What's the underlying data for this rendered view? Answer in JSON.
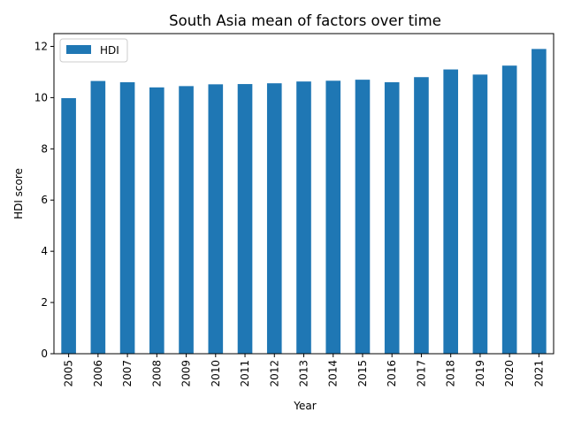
{
  "chart_data": {
    "type": "bar",
    "title": "South Asia mean of factors over time",
    "xlabel": "Year",
    "ylabel": "HDI score",
    "categories": [
      "2005",
      "2006",
      "2007",
      "2008",
      "2009",
      "2010",
      "2011",
      "2012",
      "2013",
      "2014",
      "2015",
      "2016",
      "2017",
      "2018",
      "2019",
      "2020",
      "2021"
    ],
    "series": [
      {
        "name": "HDI",
        "color": "#1f77b4",
        "values": [
          9.98,
          10.65,
          10.6,
          10.4,
          10.45,
          10.52,
          10.53,
          10.56,
          10.63,
          10.66,
          10.7,
          10.6,
          10.8,
          11.1,
          10.9,
          11.25,
          11.9
        ]
      }
    ],
    "ylim": [
      0,
      12.5
    ],
    "yticks": [
      0,
      2,
      4,
      6,
      8,
      10,
      12
    ],
    "grid": false,
    "legend_position": "upper-left"
  }
}
